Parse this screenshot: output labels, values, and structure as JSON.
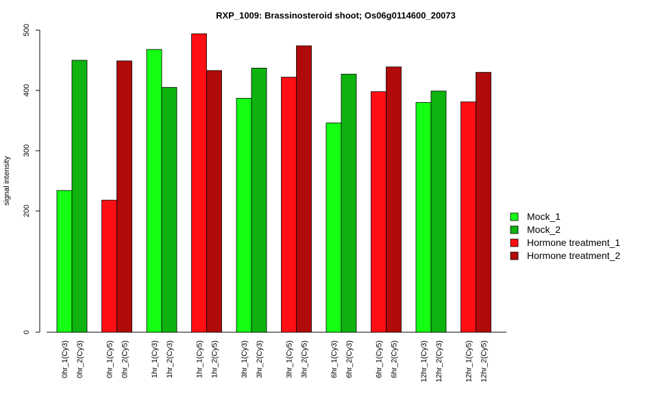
{
  "chart_data": {
    "type": "bar",
    "title": "RXP_1009: Brassinosteroid shoot; Os06g0114600_20073",
    "xlabel": "",
    "ylabel": "signal intensity",
    "y_tick_values": [
      0,
      200,
      300,
      400,
      500
    ],
    "ylim": [
      0,
      500
    ],
    "y_scale": "compressed below 200",
    "legend_position": "right",
    "grid": false,
    "series": [
      {
        "name": "Mock_1",
        "color": "#14ff14"
      },
      {
        "name": "Mock_2",
        "color": "#0fb30f"
      },
      {
        "name": "Hormone treatment_1",
        "color": "#ff0f14"
      },
      {
        "name": "Hormone treatment_2",
        "color": "#b10a0a"
      }
    ],
    "bars": [
      {
        "label": "0hr_1(Cy3)",
        "series": "Mock_1",
        "value": 234
      },
      {
        "label": "0hr_2(Cy3)",
        "series": "Mock_2",
        "value": 450
      },
      {
        "label": "0hr_1(Cy5)",
        "series": "Hormone treatment_1",
        "value": 218
      },
      {
        "label": "0hr_2(Cy5)",
        "series": "Hormone treatment_2",
        "value": 449
      },
      {
        "label": "1hr_1(Cy3)",
        "series": "Mock_1",
        "value": 468
      },
      {
        "label": "1hr_2(Cy3)",
        "series": "Mock_2",
        "value": 405
      },
      {
        "label": "1hr_1(Cy5)",
        "series": "Hormone treatment_1",
        "value": 494
      },
      {
        "label": "1hr_2(Cy5)",
        "series": "Hormone treatment_2",
        "value": 433
      },
      {
        "label": "3hr_1(Cy3)",
        "series": "Mock_1",
        "value": 387
      },
      {
        "label": "3hr_2(Cy3)",
        "series": "Mock_2",
        "value": 437
      },
      {
        "label": "3hr_1(Cy5)",
        "series": "Hormone treatment_1",
        "value": 422
      },
      {
        "label": "3hr_2(Cy5)",
        "series": "Hormone treatment_2",
        "value": 474
      },
      {
        "label": "6hr_1(Cy3)",
        "series": "Mock_1",
        "value": 346
      },
      {
        "label": "6hr_2(Cy3)",
        "series": "Mock_2",
        "value": 427
      },
      {
        "label": "6hr_1(Cy5)",
        "series": "Hormone treatment_1",
        "value": 398
      },
      {
        "label": "6hr_2(Cy5)",
        "series": "Hormone treatment_2",
        "value": 439
      },
      {
        "label": "12hr_1(Cy3)",
        "series": "Mock_1",
        "value": 380
      },
      {
        "label": "12hr_2(Cy3)",
        "series": "Mock_2",
        "value": 399
      },
      {
        "label": "12hr_1(Cy5)",
        "series": "Hormone treatment_1",
        "value": 381
      },
      {
        "label": "12hr_2(Cy5)",
        "series": "Hormone treatment_2",
        "value": 430
      }
    ]
  }
}
